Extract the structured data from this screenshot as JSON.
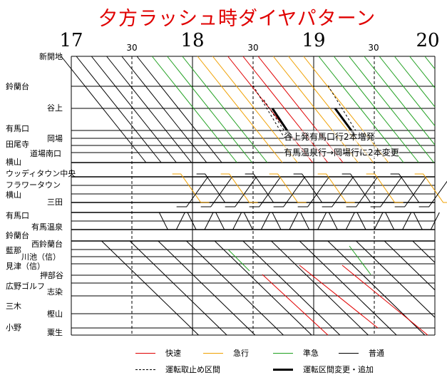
{
  "title": "夕方ラッシュ時ダイヤパターン",
  "time_axis": {
    "hours": [
      "17",
      "18",
      "19",
      "20"
    ],
    "half_label": "30"
  },
  "stations": {
    "s1": "新開地",
    "s2": "鈴蘭台",
    "s3": "谷上",
    "s4": "有馬口",
    "s5": "岡場",
    "s6": "田尾寺",
    "s7": "道場南口",
    "s8": "横山",
    "s9": "ウッディタウン中央",
    "s10": "フラワータウン",
    "s11": "横山",
    "s12": "三田",
    "s13": "有馬口",
    "s14": "有馬温泉",
    "s15": "鈴蘭台",
    "s16": "西鈴蘭台",
    "s17": "藍那",
    "s18": "川池（信）",
    "s19": "見津（信）",
    "s20": "押部谷",
    "s21": "広野ゴルフ",
    "s22": "志染",
    "s23": "三木",
    "s24": "樫山",
    "s25": "小野",
    "s26": "粟生"
  },
  "annotations": {
    "a1": "谷上発有馬口行2本増発",
    "a2": "有馬温泉行→岡場行に2本変更"
  },
  "legend": {
    "rapid": "快速",
    "express": "急行",
    "semi": "準急",
    "local": "普通",
    "cancel": "運転取止め区間",
    "change": "運転区間変更・追加"
  },
  "colors": {
    "rapid": "#e00000",
    "express": "#f0a000",
    "semi": "#20a020",
    "local": "#000000",
    "title": "#e00000"
  }
}
